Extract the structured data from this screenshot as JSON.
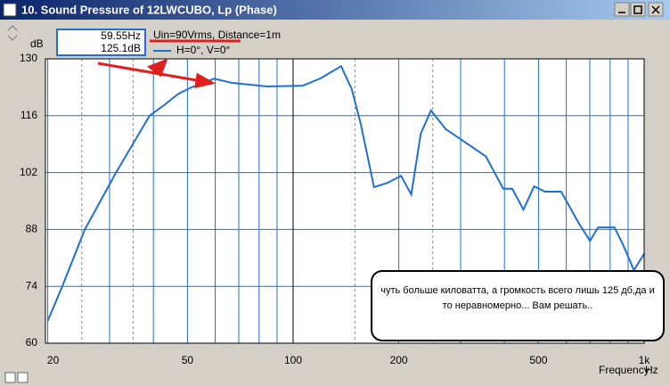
{
  "chart_data": {
    "type": "line",
    "title": "10. Sound Pressure of 12LWCUBO, Lp (Phase)",
    "ylabel": "dB",
    "xlabel": "Frequency",
    "x_unit": "Hz",
    "annotation": "Uin=90Vrms, Distance=1m",
    "cursor": {
      "x_label": "59.55Hz",
      "y_label": "125.1dB"
    },
    "callout": "чуть больше киловатта, а громкость всего лишь 125 дб,да и то неравномерно... Вам решать..",
    "xscale": "log",
    "xlim": [
      19.7,
      1000
    ],
    "ylim": [
      60,
      130
    ],
    "xticks": [
      20,
      50,
      100,
      200,
      500,
      {
        "value": 1000,
        "label": "1k"
      }
    ],
    "yticks": [
      60,
      74,
      88,
      102,
      116,
      130
    ],
    "x_minor_grid": [
      30,
      40,
      60,
      70,
      80,
      90,
      300,
      400,
      600,
      700,
      800,
      900
    ],
    "x_minor_grid_dashed": [
      25,
      35,
      150,
      250
    ],
    "grid": true,
    "series": [
      {
        "name": "H=0°, V=0°",
        "color": "#1f6fd6",
        "x": [
          20,
          22,
          25.5,
          31.3,
          39,
          43.2,
          47.1,
          51.4,
          59.55,
          66.8,
          84.4,
          106.6,
          119.8,
          137,
          147,
          156,
          170,
          186,
          203,
          217,
          231,
          247,
          272,
          305,
          354,
          397,
          421,
          453,
          486,
          522,
          580,
          651,
          701,
          739,
          823,
          872,
          935,
          1000
        ],
        "values": [
          65.5,
          74,
          88,
          102,
          116,
          118.8,
          121.4,
          123,
          125.1,
          124.1,
          123.2,
          123.4,
          125.2,
          128.2,
          122.5,
          113.8,
          98.4,
          99.5,
          101.2,
          96.6,
          111.6,
          117.3,
          112.7,
          109.8,
          106,
          98,
          98,
          92.9,
          98.6,
          97.3,
          97.3,
          89.6,
          85.2,
          88.5,
          88.5,
          84.1,
          78,
          82
        ]
      }
    ]
  }
}
